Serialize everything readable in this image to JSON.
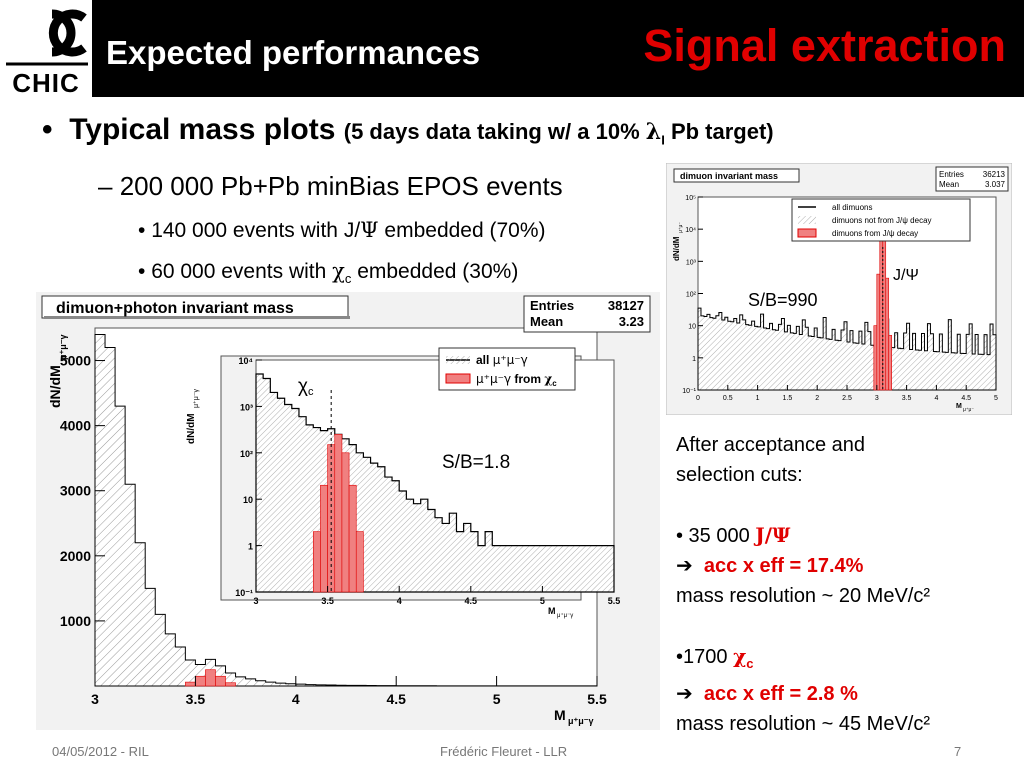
{
  "header": {
    "logo_top": "ƆC",
    "logo_text": "CHIC",
    "title_left": "Expected performances",
    "title_right": "Signal extraction"
  },
  "content": {
    "bullet1_main": "Typical mass plots",
    "bullet1_sub_a": "(5 days data taking w/ a 10% ",
    "bullet1_sub_lambda": "λ",
    "bullet1_sub_l": "I",
    "bullet1_sub_b": " Pb target)",
    "bullet2": "200 000 Pb+Pb minBias EPOS events",
    "bullet3a_pre": "140 000 events with J/",
    "bullet3a_psi": "Ψ",
    "bullet3a_post": " embedded (70%)",
    "bullet3b_pre": "60 000 events with ",
    "bullet3b_chi": "χ",
    "bullet3b_c": "c",
    "bullet3b_post": " embedded (30%)",
    "info": {
      "l1": "After acceptance and",
      "l2": "selection cuts:",
      "jpsi_count": "• 35 000 ",
      "jpsi_label": "J/Ψ",
      "jpsi_acc": "acc x eff = 17.4%",
      "jpsi_res": "mass resolution ~ 20 MeV/c²",
      "chic_count": "•1700 ",
      "chic_label": "χ",
      "chic_sub": "c",
      "chic_acc": "acc x eff = 2.8 %",
      "chic_res": "mass resolution ~ 45 MeV/c²",
      "arrow": "➔"
    }
  },
  "footer": {
    "date": "04/05/2012 - RIL",
    "author": "Frédéric Fleuret - LLR",
    "page": "7"
  },
  "chart_data": [
    {
      "type": "histogram",
      "title": "dimuon+photon invariant mass",
      "stats": {
        "entries_label": "Entries",
        "entries": "38127",
        "mean_label": "Mean",
        "mean": "3.23"
      },
      "ylabel": "dN/dM",
      "ylabel_sub": "μ⁺μ⁻γ",
      "xlabel": "M",
      "xlabel_sub": "μ⁺μ⁻γ",
      "xlim": [
        3,
        5.5
      ],
      "ylim": [
        0,
        5500
      ],
      "xticks": [
        "3",
        "3.5",
        "4",
        "4.5",
        "5",
        "5.5"
      ],
      "yticks": [
        "1000",
        "2000",
        "3000",
        "4000",
        "5000"
      ],
      "all_hist": {
        "x": [
          3.0,
          3.05,
          3.1,
          3.15,
          3.2,
          3.25,
          3.3,
          3.35,
          3.4,
          3.45,
          3.5,
          3.55,
          3.6,
          3.65,
          3.7,
          3.75,
          3.8,
          3.85,
          3.9,
          3.95,
          4.0,
          4.05,
          4.1,
          4.15,
          4.2,
          4.25,
          4.3,
          4.35,
          4.4,
          4.45,
          4.5,
          4.55,
          4.6,
          4.65,
          4.7,
          4.75,
          4.8,
          4.85,
          4.9,
          4.95,
          5.0,
          5.05,
          5.1,
          5.15,
          5.2,
          5.25,
          5.3,
          5.35,
          5.4,
          5.45
        ],
        "y": [
          5400,
          5200,
          4300,
          3100,
          2200,
          1500,
          1100,
          800,
          600,
          400,
          330,
          410,
          310,
          200,
          140,
          110,
          80,
          60,
          45,
          35,
          28,
          22,
          18,
          15,
          12,
          10,
          9,
          7,
          6,
          5,
          4,
          4,
          3,
          3,
          2,
          2,
          2,
          1,
          1,
          1,
          1,
          1,
          1,
          1,
          1,
          1,
          1,
          1,
          1,
          1
        ]
      },
      "signal_hist": {
        "x": [
          3.45,
          3.5,
          3.55,
          3.6,
          3.65
        ],
        "y": [
          60,
          150,
          250,
          150,
          50
        ]
      },
      "inset": {
        "type": "histogram",
        "ylabel": "dN/dM",
        "ylabel_sub": "μ⁺μ⁻γ",
        "xlabel": "M",
        "xlabel_sub": "μ⁺μ⁻γ",
        "xlim": [
          3,
          5.5
        ],
        "ylim_log": [
          0.1,
          10000
        ],
        "yscale": "log",
        "xticks": [
          "3",
          "3.5",
          "4",
          "4.5",
          "5",
          "5.5"
        ],
        "yticks": [
          "10⁴",
          "10³",
          "10²",
          "10",
          "1",
          "10⁻¹"
        ],
        "legend": [
          {
            "label_pre": "all ",
            "label_greek": "μ⁺μ⁻γ",
            "style": "hatched"
          },
          {
            "label_greek": "μ⁺μ⁻γ",
            "label_post": " from ",
            "label_chi": "χ",
            "label_sub": "c",
            "style": "red"
          }
        ],
        "peak_label": "χ",
        "peak_sub": "c",
        "sb_label": "S/B=1.8",
        "all_hist": {
          "x": [
            3.0,
            3.05,
            3.1,
            3.15,
            3.2,
            3.25,
            3.3,
            3.35,
            3.4,
            3.45,
            3.5,
            3.55,
            3.6,
            3.65,
            3.7,
            3.75,
            3.8,
            3.85,
            3.9,
            3.95,
            4.0,
            4.05,
            4.1,
            4.15,
            4.2,
            4.25,
            4.3,
            4.35,
            4.4,
            4.45,
            4.5,
            4.55,
            4.6,
            4.65,
            4.7,
            4.75,
            4.8,
            4.85,
            4.9,
            4.95,
            5.0,
            5.05,
            5.1,
            5.15,
            5.2,
            5.25,
            5.3,
            5.35,
            5.4,
            5.45
          ],
          "y": [
            5000,
            4000,
            2000,
            1500,
            1100,
            900,
            600,
            400,
            350,
            300,
            330,
            250,
            200,
            150,
            100,
            80,
            60,
            50,
            30,
            25,
            15,
            10,
            8,
            10,
            6,
            4,
            3,
            5,
            2,
            3,
            2,
            1,
            2,
            1,
            1,
            1,
            1,
            1,
            1,
            1,
            1,
            1,
            1,
            1,
            1,
            1,
            1,
            1,
            1,
            1
          ]
        },
        "signal_hist": {
          "x": [
            3.35,
            3.4,
            3.45,
            3.5,
            3.55,
            3.6,
            3.65,
            3.7
          ],
          "y": [
            0.1,
            2,
            20,
            150,
            250,
            100,
            20,
            2
          ]
        }
      }
    },
    {
      "type": "histogram",
      "title": "dimuon invariant mass",
      "stats": {
        "entries_label": "Entries",
        "entries": "36213",
        "mean_label": "Mean",
        "mean": "3.037"
      },
      "ylabel": "dN/dM",
      "ylabel_sub": "μ⁺μ⁻",
      "xlabel": "M",
      "xlabel_sub": "μ⁺μ⁻",
      "xlim": [
        0,
        5
      ],
      "ylim_log": [
        0.1,
        100000
      ],
      "yscale": "log",
      "xticks": [
        "0",
        "0.5",
        "1",
        "1.5",
        "2",
        "2.5",
        "3",
        "3.5",
        "4",
        "4.5",
        "5"
      ],
      "yticks": [
        "10⁵",
        "10⁴",
        "10³",
        "10²",
        "10",
        "1",
        "10⁻¹"
      ],
      "legend": [
        {
          "label": "all dimuons",
          "style": "line"
        },
        {
          "label": "dimuons not from J/ψ decay",
          "style": "hatched"
        },
        {
          "label": "dimuons from J/ψ decay",
          "style": "red"
        }
      ],
      "peak_label": "J/Ψ",
      "sb_label": "S/B=990",
      "signal_hist": {
        "x": [
          2.95,
          3.0,
          3.05,
          3.1,
          3.15,
          3.2
        ],
        "y": [
          10,
          400,
          8000,
          10000,
          300,
          5
        ]
      }
    }
  ]
}
